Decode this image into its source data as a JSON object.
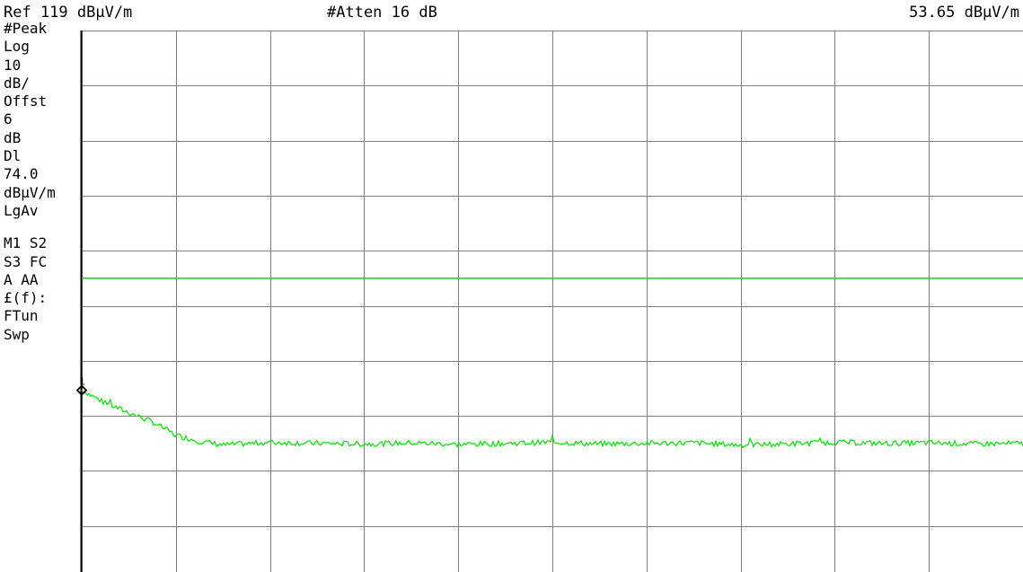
{
  "header": {
    "ref_level": "Ref 119 dBµV/m",
    "attenuation": "#Atten 16 dB",
    "marker_readout": "53.65 dBµV/m"
  },
  "side_panel": {
    "detector": "#Peak",
    "scale_type": "Log",
    "scale_value": "10",
    "scale_unit": "dB/",
    "offset_label": "Offst",
    "offset_value": "6",
    "offset_unit": "dB",
    "display_line_label": "Dl",
    "display_line_value": "74.0",
    "display_line_unit": "dBµV/m",
    "avg_mode": "LgAv",
    "row1": "M1  S2",
    "row2": "S3  FC",
    "row3": "A   AA",
    "row4": "£(f):",
    "row5": "FTun",
    "row6": "Swp"
  },
  "chart_data": {
    "type": "line",
    "title": "",
    "xlabel": "",
    "ylabel": "",
    "y_unit": "dBµV/m",
    "ref_level": 119,
    "scale_db_per_div": 10,
    "ylim": [
      19,
      119
    ],
    "xlim": [
      0,
      10
    ],
    "x_divisions": 10,
    "y_divisions": 10,
    "grid": true,
    "display_line": {
      "value": 74.0,
      "color": "#00e000"
    },
    "trace_color": "#00e000",
    "marker": {
      "label": "1",
      "x": 0.0,
      "value": 53.65
    },
    "series": [
      {
        "x": [
          0.0,
          0.25,
          0.5,
          0.75,
          1.0,
          1.25,
          1.5,
          2.0,
          2.5,
          3.0,
          3.5,
          4.0,
          4.5,
          5.0,
          5.5,
          6.0,
          6.5,
          7.0,
          7.5,
          8.0,
          8.5,
          9.0,
          9.5,
          10.0
        ],
        "values": [
          53.7,
          51.3,
          49.6,
          47.9,
          45.5,
          44.4,
          43.7,
          44.2,
          44.0,
          43.9,
          44.1,
          43.8,
          44.0,
          44.2,
          43.9,
          44.0,
          44.1,
          43.7,
          43.9,
          44.2,
          44.0,
          44.1,
          43.9,
          44.0
        ]
      }
    ]
  }
}
